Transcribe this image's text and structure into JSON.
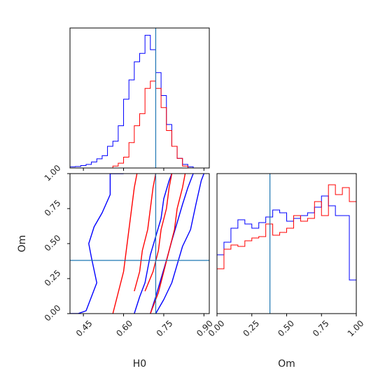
{
  "chart_data": {
    "type": "corner",
    "parameters": [
      "H0",
      "Om"
    ],
    "truth": {
      "H0": 0.72,
      "Om": 0.38
    },
    "truth_color": "#1f77b4",
    "series_colors": [
      "#0000ff",
      "#ff0000"
    ],
    "axes": {
      "H0": {
        "label": "H0",
        "range": [
          0.4,
          0.92
        ],
        "ticks": [
          "0.45",
          "0.60",
          "0.75",
          "0.90"
        ],
        "tick_values": [
          0.45,
          0.6,
          0.75,
          0.9
        ]
      },
      "Om": {
        "label": "Om",
        "range": [
          0.0,
          1.0
        ],
        "ticks": [
          "0.00",
          "0.25",
          "0.50",
          "0.75",
          "1.00"
        ],
        "tick_values": [
          0.0,
          0.25,
          0.5,
          0.75,
          1.0
        ]
      }
    },
    "histograms": {
      "H0": {
        "bin_edges": [
          0.4,
          0.42,
          0.44,
          0.46,
          0.48,
          0.5,
          0.52,
          0.54,
          0.56,
          0.58,
          0.6,
          0.62,
          0.64,
          0.66,
          0.68,
          0.7,
          0.72,
          0.74,
          0.76,
          0.78,
          0.8,
          0.82,
          0.84,
          0.86,
          0.88,
          0.9,
          0.92
        ],
        "series": [
          {
            "color": "#0000ff",
            "counts": [
              0.5,
              0.6,
              1.0,
              1.5,
              2.5,
              3.8,
              5.1,
              9.0,
              11.1,
              17.5,
              28.5,
              36.5,
              44.0,
              47.5,
              55.0,
              49.0,
              39.5,
              30.0,
              18.0,
              9.0,
              4.0,
              1.5,
              0.5,
              0,
              0,
              0
            ]
          },
          {
            "color": "#ff0000",
            "counts": [
              0,
              0,
              0,
              0,
              0,
              0,
              0,
              0,
              0.8,
              2.0,
              4.5,
              10.5,
              17.5,
              22.5,
              33.0,
              36.0,
              33.0,
              25.0,
              15.5,
              9.0,
              4.0,
              0.8,
              0,
              0,
              0,
              0
            ]
          }
        ],
        "ymax": 58
      },
      "Om": {
        "bin_edges": [
          0.0,
          0.05,
          0.1,
          0.15,
          0.2,
          0.25,
          0.3,
          0.35,
          0.4,
          0.45,
          0.5,
          0.55,
          0.6,
          0.65,
          0.7,
          0.75,
          0.8,
          0.85,
          0.9,
          0.95,
          1.0
        ],
        "series": [
          {
            "color": "#0000ff",
            "counts": [
              0.42,
              0.51,
              0.61,
              0.67,
              0.64,
              0.61,
              0.65,
              0.69,
              0.74,
              0.72,
              0.66,
              0.68,
              0.7,
              0.72,
              0.76,
              0.84,
              0.77,
              0.7,
              0.7,
              0.24
            ]
          },
          {
            "color": "#ff0000",
            "counts": [
              0.32,
              0.46,
              0.49,
              0.48,
              0.52,
              0.54,
              0.55,
              0.64,
              0.56,
              0.58,
              0.61,
              0.7,
              0.66,
              0.68,
              0.8,
              0.7,
              0.92,
              0.85,
              0.9,
              0.8
            ]
          }
        ],
        "ymin": 0.0,
        "ymax": 1.0
      }
    },
    "contours_2d": {
      "x": "H0",
      "y": "Om",
      "series": [
        {
          "color": "#0000ff",
          "levels": [
            {
              "name": "outer",
              "points": [
                [
                  0.4,
                  0.0
                ],
                [
                  0.43,
                  0.0
                ],
                [
                  0.46,
                  0.02
                ],
                [
                  0.48,
                  0.12
                ],
                [
                  0.5,
                  0.22
                ],
                [
                  0.48,
                  0.4
                ],
                [
                  0.47,
                  0.5
                ],
                [
                  0.49,
                  0.62
                ],
                [
                  0.52,
                  0.72
                ],
                [
                  0.55,
                  0.85
                ],
                [
                  0.55,
                  1.0
                ],
                [
                  0.6,
                  1.0
                ]
              ]
            },
            {
              "name": "outer-right",
              "points": [
                [
                  0.72,
                  0.0
                ],
                [
                  0.75,
                  0.1
                ],
                [
                  0.78,
                  0.22
                ],
                [
                  0.8,
                  0.35
                ],
                [
                  0.82,
                  0.48
                ],
                [
                  0.85,
                  0.6
                ],
                [
                  0.87,
                  0.78
                ],
                [
                  0.89,
                  0.95
                ],
                [
                  0.9,
                  1.0
                ]
              ]
            },
            {
              "name": "inner-left",
              "points": [
                [
                  0.64,
                  0.0
                ],
                [
                  0.66,
                  0.12
                ],
                [
                  0.68,
                  0.22
                ],
                [
                  0.69,
                  0.32
                ],
                [
                  0.7,
                  0.42
                ],
                [
                  0.72,
                  0.55
                ],
                [
                  0.74,
                  0.68
                ],
                [
                  0.75,
                  0.82
                ],
                [
                  0.77,
                  0.95
                ],
                [
                  0.78,
                  1.0
                ]
              ]
            },
            {
              "name": "inner-right",
              "points": [
                [
                  0.7,
                  0.0
                ],
                [
                  0.72,
                  0.12
                ],
                [
                  0.74,
                  0.25
                ],
                [
                  0.76,
                  0.38
                ],
                [
                  0.78,
                  0.52
                ],
                [
                  0.8,
                  0.65
                ],
                [
                  0.82,
                  0.78
                ],
                [
                  0.84,
                  0.9
                ],
                [
                  0.86,
                  1.0
                ]
              ]
            }
          ]
        },
        {
          "color": "#ff0000",
          "levels": [
            {
              "name": "outer-left",
              "points": [
                [
                  0.56,
                  0.0
                ],
                [
                  0.58,
                  0.15
                ],
                [
                  0.6,
                  0.3
                ],
                [
                  0.61,
                  0.45
                ],
                [
                  0.62,
                  0.6
                ],
                [
                  0.63,
                  0.75
                ],
                [
                  0.64,
                  0.9
                ],
                [
                  0.65,
                  1.0
                ]
              ]
            },
            {
              "name": "outer-right",
              "points": [
                [
                  0.7,
                  0.0
                ],
                [
                  0.73,
                  0.15
                ],
                [
                  0.75,
                  0.3
                ],
                [
                  0.77,
                  0.45
                ],
                [
                  0.79,
                  0.6
                ],
                [
                  0.8,
                  0.75
                ],
                [
                  0.82,
                  0.9
                ],
                [
                  0.83,
                  1.0
                ]
              ]
            },
            {
              "name": "inner-left",
              "points": [
                [
                  0.64,
                  0.16
                ],
                [
                  0.66,
                  0.3
                ],
                [
                  0.67,
                  0.45
                ],
                [
                  0.69,
                  0.6
                ],
                [
                  0.7,
                  0.75
                ],
                [
                  0.71,
                  0.9
                ],
                [
                  0.72,
                  1.0
                ]
              ]
            },
            {
              "name": "inner-right",
              "points": [
                [
                  0.68,
                  0.16
                ],
                [
                  0.71,
                  0.3
                ],
                [
                  0.73,
                  0.45
                ],
                [
                  0.74,
                  0.6
                ],
                [
                  0.76,
                  0.75
                ],
                [
                  0.77,
                  0.9
                ],
                [
                  0.78,
                  1.0
                ]
              ]
            }
          ]
        }
      ]
    }
  }
}
